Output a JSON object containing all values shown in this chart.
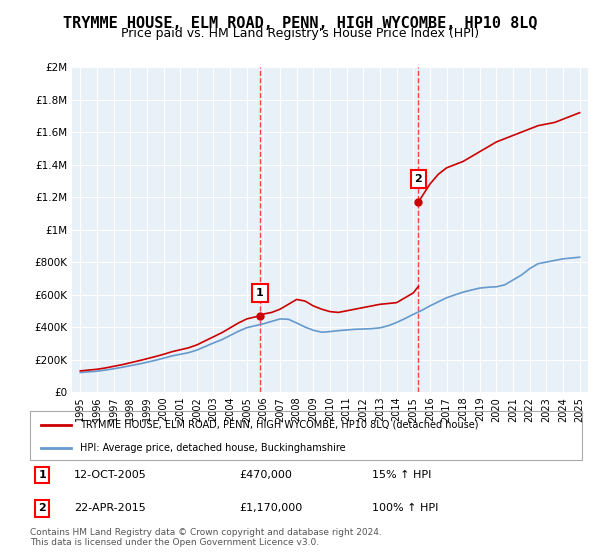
{
  "title": "TRYMME HOUSE, ELM ROAD, PENN, HIGH WYCOMBE, HP10 8LQ",
  "subtitle": "Price paid vs. HM Land Registry's House Price Index (HPI)",
  "title_fontsize": 11,
  "subtitle_fontsize": 9,
  "background_color": "#ffffff",
  "plot_bg_color": "#e8f0f8",
  "legend_label_red": "TRYMME HOUSE, ELM ROAD, PENN, HIGH WYCOMBE, HP10 8LQ (detached house)",
  "legend_label_blue": "HPI: Average price, detached house, Buckinghamshire",
  "footnote": "Contains HM Land Registry data © Crown copyright and database right 2024.\nThis data is licensed under the Open Government Licence v3.0.",
  "sale1_date_str": "12-OCT-2005",
  "sale1_price_str": "£470,000",
  "sale1_hpi_str": "15% ↑ HPI",
  "sale1_x": 2005.79,
  "sale1_y": 470000,
  "sale2_date_str": "22-APR-2015",
  "sale2_price_str": "£1,170,000",
  "sale2_hpi_str": "100% ↑ HPI",
  "sale2_x": 2015.31,
  "sale2_y": 1170000,
  "ylim": [
    0,
    2000000
  ],
  "xlim": [
    1994.5,
    2025.5
  ],
  "yticks": [
    0,
    200000,
    400000,
    600000,
    800000,
    1000000,
    1200000,
    1400000,
    1600000,
    1800000,
    2000000
  ],
  "ytick_labels": [
    "£0",
    "£200K",
    "£400K",
    "£600K",
    "£800K",
    "£1M",
    "£1.2M",
    "£1.4M",
    "£1.6M",
    "£1.8M",
    "£2M"
  ],
  "xticks": [
    1995,
    1996,
    1997,
    1998,
    1999,
    2000,
    2001,
    2002,
    2003,
    2004,
    2005,
    2006,
    2007,
    2008,
    2009,
    2010,
    2011,
    2012,
    2013,
    2014,
    2015,
    2016,
    2017,
    2018,
    2019,
    2020,
    2021,
    2022,
    2023,
    2024,
    2025
  ],
  "red_line_color": "#cc0000",
  "blue_line_color": "#6699cc",
  "dashed_line_color": "#ff4444",
  "seg1_x": [
    1995.0,
    1995.5,
    1996.0,
    1996.5,
    1997.0,
    1997.5,
    1998.0,
    1998.5,
    1999.0,
    1999.5,
    2000.0,
    2000.5,
    2001.0,
    2001.5,
    2002.0,
    2002.5,
    2003.0,
    2003.5,
    2004.0,
    2004.5,
    2005.0,
    2005.5,
    2005.79
  ],
  "seg1_y": [
    130000,
    135000,
    140000,
    148000,
    158000,
    168000,
    180000,
    192000,
    205000,
    218000,
    232000,
    248000,
    260000,
    272000,
    290000,
    315000,
    340000,
    365000,
    395000,
    425000,
    450000,
    462000,
    470000
  ],
  "seg2_x": [
    2005.79,
    2006.0,
    2006.5,
    2007.0,
    2007.5,
    2008.0,
    2008.5,
    2009.0,
    2009.5,
    2010.0,
    2010.5,
    2011.0,
    2011.5,
    2012.0,
    2012.5,
    2013.0,
    2013.5,
    2014.0,
    2014.5,
    2015.0,
    2015.31
  ],
  "seg2_y": [
    470000,
    480000,
    490000,
    510000,
    540000,
    570000,
    560000,
    530000,
    510000,
    495000,
    490000,
    500000,
    510000,
    520000,
    530000,
    540000,
    545000,
    550000,
    580000,
    610000,
    650000
  ],
  "seg3_x": [
    2015.31,
    2015.5,
    2016.0,
    2016.5,
    2017.0,
    2017.5,
    2018.0,
    2018.5,
    2019.0,
    2019.5,
    2020.0,
    2020.5,
    2021.0,
    2021.5,
    2022.0,
    2022.5,
    2023.0,
    2023.5,
    2024.0,
    2024.5,
    2025.0
  ],
  "seg3_y": [
    1170000,
    1200000,
    1280000,
    1340000,
    1380000,
    1400000,
    1420000,
    1450000,
    1480000,
    1510000,
    1540000,
    1560000,
    1580000,
    1600000,
    1620000,
    1640000,
    1650000,
    1660000,
    1680000,
    1700000,
    1720000
  ],
  "blue_x": [
    1995.0,
    1995.5,
    1996.0,
    1996.5,
    1997.0,
    1997.5,
    1998.0,
    1998.5,
    1999.0,
    1999.5,
    2000.0,
    2000.5,
    2001.0,
    2001.5,
    2002.0,
    2002.5,
    2003.0,
    2003.5,
    2004.0,
    2004.5,
    2005.0,
    2005.5,
    2006.0,
    2006.5,
    2007.0,
    2007.5,
    2008.0,
    2008.5,
    2009.0,
    2009.5,
    2010.0,
    2010.5,
    2011.0,
    2011.5,
    2012.0,
    2012.5,
    2013.0,
    2013.5,
    2014.0,
    2014.5,
    2015.0,
    2015.5,
    2016.0,
    2016.5,
    2017.0,
    2017.5,
    2018.0,
    2018.5,
    2019.0,
    2019.5,
    2020.0,
    2020.5,
    2021.0,
    2021.5,
    2022.0,
    2022.5,
    2023.0,
    2023.5,
    2024.0,
    2024.5,
    2025.0
  ],
  "blue_y": [
    120000,
    124000,
    128000,
    135000,
    143000,
    152000,
    162000,
    172000,
    183000,
    195000,
    208000,
    222000,
    232000,
    242000,
    258000,
    280000,
    302000,
    322000,
    348000,
    374000,
    396000,
    408000,
    420000,
    435000,
    450000,
    448000,
    425000,
    400000,
    380000,
    368000,
    372000,
    378000,
    382000,
    386000,
    388000,
    390000,
    395000,
    408000,
    428000,
    452000,
    478000,
    502000,
    530000,
    555000,
    580000,
    598000,
    615000,
    628000,
    640000,
    645000,
    648000,
    660000,
    690000,
    720000,
    760000,
    790000,
    800000,
    810000,
    820000,
    825000,
    830000
  ]
}
